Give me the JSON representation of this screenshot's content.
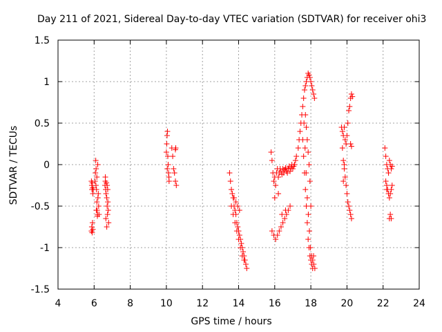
{
  "chart_data": {
    "type": "scatter",
    "title": "Day 211 of 2021, Sidereal Day-to-day VTEC variation (SDTVAR) for receiver ohi3",
    "xlabel": "GPS time / hours",
    "ylabel": "SDTVAR / TECUs",
    "xlim": [
      4,
      24
    ],
    "ylim": [
      -1.5,
      1.5
    ],
    "xticks": [
      "4",
      "6",
      "8",
      "10",
      "12",
      "14",
      "16",
      "18",
      "20",
      "22",
      "24"
    ],
    "yticks": [
      "-1.5",
      "-1",
      "-0.5",
      "0",
      "0.5",
      "1",
      "1.5"
    ],
    "grid": true,
    "marker": "+",
    "series_color": "#ff0000",
    "series": [
      {
        "name": "SDTVAR",
        "x": [
          5.85,
          5.87,
          5.88,
          5.9,
          5.92,
          5.93,
          5.95,
          5.85,
          5.87,
          5.89,
          5.91,
          5.93,
          6.05,
          6.07,
          6.09,
          6.11,
          6.13,
          6.15,
          6.17,
          6.19,
          6.21,
          6.23,
          6.25,
          6.27,
          6.1,
          6.15,
          6.2,
          6.12,
          6.18,
          6.6,
          6.62,
          6.64,
          6.66,
          6.68,
          6.7,
          6.72,
          6.74,
          6.76,
          6.78,
          6.8,
          6.65,
          6.7,
          6.75,
          6.62,
          6.72,
          10.0,
          10.02,
          10.04,
          10.06,
          10.08,
          10.1,
          10.12,
          10.14,
          10.3,
          10.35,
          10.4,
          10.45,
          10.5,
          10.55,
          10.5,
          10.52,
          10.05,
          10.15,
          13.5,
          13.55,
          13.6,
          13.65,
          13.7,
          13.75,
          13.8,
          13.85,
          13.9,
          13.95,
          14.0,
          14.05,
          14.1,
          14.15,
          14.2,
          14.25,
          14.3,
          14.35,
          14.4,
          14.45,
          13.6,
          13.7,
          13.8,
          13.9,
          14.0,
          14.1,
          14.2,
          14.3,
          13.75,
          13.85,
          13.95,
          14.05,
          15.8,
          15.85,
          15.9,
          15.95,
          16.0,
          16.05,
          16.1,
          16.15,
          16.2,
          16.25,
          16.3,
          16.35,
          16.4,
          16.45,
          16.5,
          16.55,
          16.6,
          16.65,
          16.7,
          16.75,
          16.8,
          16.85,
          16.9,
          16.95,
          17.0,
          17.05,
          17.1,
          17.15,
          17.2,
          15.85,
          15.95,
          16.05,
          16.15,
          16.25,
          16.35,
          16.45,
          16.55,
          16.65,
          16.75,
          16.85,
          16.0,
          16.2,
          16.4,
          16.6,
          17.3,
          17.35,
          17.4,
          17.45,
          17.5,
          17.55,
          17.6,
          17.65,
          17.7,
          17.75,
          17.8,
          17.85,
          17.9,
          17.95,
          18.0,
          18.05,
          18.1,
          18.15,
          18.2,
          17.55,
          17.6,
          17.65,
          17.7,
          17.75,
          17.8,
          17.85,
          17.9,
          17.95,
          18.0,
          18.05,
          18.1,
          18.15,
          17.62,
          17.68,
          17.74,
          17.8,
          17.86,
          17.92,
          17.98,
          18.04,
          18.1,
          18.16,
          18.22,
          17.7,
          17.75,
          17.8,
          17.85,
          17.9,
          17.95,
          18.0,
          19.7,
          19.75,
          19.8,
          19.85,
          19.9,
          19.95,
          20.0,
          20.05,
          20.1,
          20.15,
          20.2,
          20.25,
          20.3,
          19.75,
          19.8,
          19.85,
          19.9,
          19.95,
          20.0,
          20.05,
          20.1,
          20.15,
          20.2,
          20.25,
          19.8,
          19.85,
          20.2,
          20.25,
          22.1,
          22.15,
          22.2,
          22.25,
          22.3,
          22.35,
          22.4,
          22.45,
          22.5,
          22.15,
          22.2,
          22.25,
          22.3,
          22.35,
          22.4,
          22.45,
          22.5,
          22.35,
          22.4,
          22.45,
          22.2,
          22.3
        ],
        "y": [
          -0.2,
          -0.25,
          -0.3,
          -0.22,
          -0.28,
          -0.35,
          -0.3,
          -0.8,
          -0.75,
          -0.82,
          -0.7,
          -0.78,
          -0.2,
          -0.1,
          0.05,
          -0.05,
          -0.3,
          -0.45,
          -0.55,
          -0.6,
          -0.4,
          -0.35,
          -0.5,
          -0.6,
          -0.25,
          -0.15,
          0.0,
          -0.55,
          -0.62,
          -0.25,
          -0.2,
          -0.3,
          -0.35,
          -0.22,
          -0.4,
          -0.5,
          -0.6,
          -0.45,
          -0.55,
          -0.7,
          -0.65,
          -0.75,
          -0.3,
          -0.15,
          -0.25,
          0.15,
          0.25,
          0.35,
          0.4,
          0.1,
          0.0,
          -0.1,
          -0.15,
          0.2,
          0.1,
          -0.05,
          -0.1,
          -0.2,
          -0.25,
          0.18,
          0.2,
          -0.05,
          -0.2,
          -0.1,
          -0.2,
          -0.3,
          -0.35,
          -0.4,
          -0.5,
          -0.55,
          -0.6,
          -0.7,
          -0.75,
          -0.8,
          -0.85,
          -0.9,
          -0.95,
          -1.0,
          -1.05,
          -1.1,
          -1.15,
          -1.2,
          -1.25,
          -0.5,
          -0.6,
          -0.7,
          -0.8,
          -0.9,
          -1.0,
          -1.1,
          -1.15,
          -0.4,
          -0.45,
          -0.5,
          -0.55,
          0.15,
          0.05,
          -0.1,
          -0.2,
          -0.15,
          -0.25,
          -0.1,
          -0.05,
          -0.15,
          -0.1,
          -0.05,
          -0.08,
          -0.12,
          -0.05,
          -0.1,
          -0.06,
          -0.04,
          -0.08,
          -0.1,
          -0.05,
          -0.02,
          -0.08,
          -0.04,
          0.0,
          -0.05,
          -0.02,
          0.0,
          0.05,
          0.1,
          -0.8,
          -0.85,
          -0.9,
          -0.85,
          -0.8,
          -0.75,
          -0.7,
          -0.65,
          -0.6,
          -0.55,
          -0.5,
          -0.4,
          -0.35,
          -0.6,
          -0.55,
          0.2,
          0.3,
          0.4,
          0.5,
          0.6,
          0.7,
          0.8,
          0.9,
          0.95,
          1.0,
          1.05,
          1.1,
          1.08,
          1.05,
          1.0,
          0.95,
          0.9,
          0.85,
          0.8,
          0.3,
          0.1,
          -0.1,
          -0.3,
          -0.5,
          -0.7,
          -0.9,
          -1.0,
          -1.1,
          -1.15,
          -1.2,
          -1.25,
          -1.1,
          0.5,
          0.2,
          -0.1,
          -0.4,
          -0.6,
          -0.8,
          -1.0,
          -1.1,
          -1.15,
          -1.2,
          -1.25,
          0.6,
          0.45,
          0.3,
          0.15,
          0.0,
          -0.2,
          -0.5,
          0.45,
          0.4,
          0.35,
          0.45,
          0.3,
          0.25,
          0.35,
          0.5,
          0.65,
          0.7,
          0.8,
          0.85,
          0.82,
          0.2,
          0.05,
          -0.05,
          -0.15,
          -0.25,
          -0.35,
          -0.45,
          -0.5,
          -0.55,
          -0.6,
          -0.65,
          -0.2,
          0.0,
          0.25,
          0.22,
          0.2,
          0.1,
          0.0,
          -0.05,
          -0.1,
          0.05,
          0.0,
          -0.05,
          -0.02,
          -0.2,
          -0.25,
          -0.3,
          -0.35,
          -0.4,
          -0.35,
          -0.3,
          -0.25,
          -0.65,
          -0.6,
          -0.65,
          -0.3,
          -0.1
        ]
      }
    ]
  }
}
